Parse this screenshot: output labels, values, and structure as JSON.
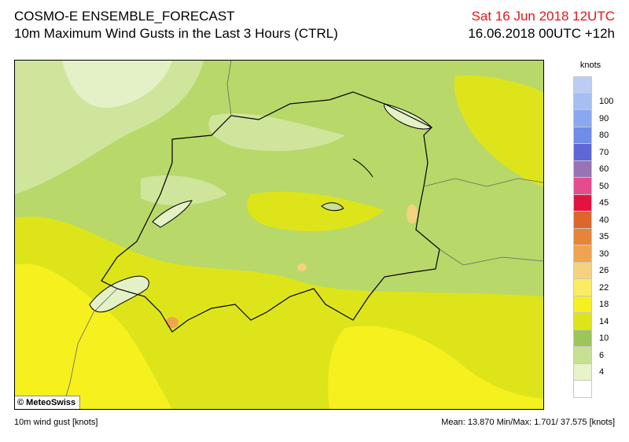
{
  "header": {
    "model": "COSMO-E ENSEMBLE_FORECAST",
    "product": "10m Maximum Wind Gusts in the Last 3 Hours (CTRL)",
    "valid_time": "Sat 16 Jun 2018 12UTC",
    "run_time": "16.06.2018 00UTC +12h"
  },
  "map": {
    "credit": "© MeteoSwiss"
  },
  "legend": {
    "unit": "knots",
    "levels": [
      {
        "label": "",
        "color": "#bccdf5"
      },
      {
        "label": "100",
        "color": "#a5bff2"
      },
      {
        "label": "90",
        "color": "#8aa8ee"
      },
      {
        "label": "80",
        "color": "#6f8de6"
      },
      {
        "label": "70",
        "color": "#5f66d6"
      },
      {
        "label": "60",
        "color": "#9873b6"
      },
      {
        "label": "50",
        "color": "#e54c8c"
      },
      {
        "label": "45",
        "color": "#e5123f"
      },
      {
        "label": "40",
        "color": "#d9672e"
      },
      {
        "label": "35",
        "color": "#e6843a"
      },
      {
        "label": "30",
        "color": "#efa550"
      },
      {
        "label": "26",
        "color": "#f4d27f"
      },
      {
        "label": "22",
        "color": "#fbec62"
      },
      {
        "label": "18",
        "color": "#f5f01e"
      },
      {
        "label": "14",
        "color": "#dde51a"
      },
      {
        "label": "10",
        "color": "#9cc55a"
      },
      {
        "label": "6",
        "color": "#c8e092"
      },
      {
        "label": "4",
        "color": "#e7f3c9"
      },
      {
        "label": "",
        "color": "#ffffff"
      }
    ]
  },
  "footer": {
    "variable": "10m wind gust [knots]",
    "stats": "Mean:  13.870 Min/Max:   1.701/ 37.575 [knots]"
  }
}
